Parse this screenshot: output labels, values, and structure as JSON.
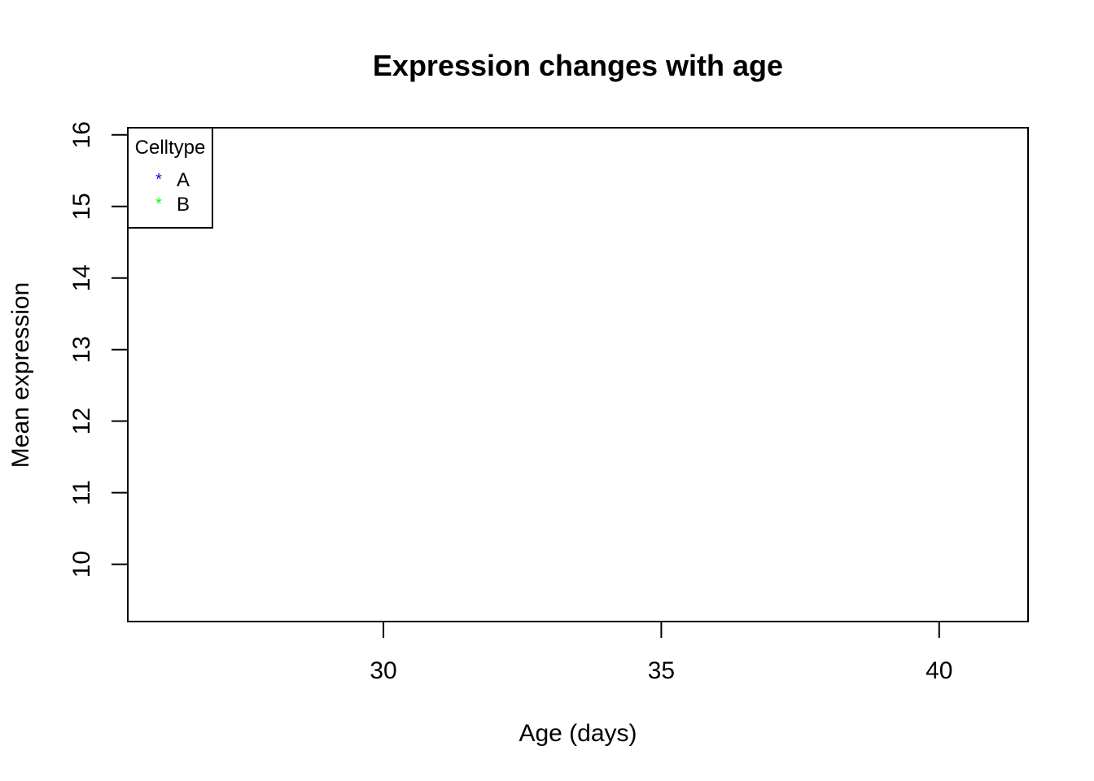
{
  "chart_data": {
    "type": "scatter",
    "title": "Expression changes with age",
    "xlabel": "Age (days)",
    "ylabel": "Mean expression",
    "xlim": [
      25.4,
      41.6
    ],
    "ylim": [
      9.2,
      16.1
    ],
    "x_ticks": [
      30,
      35,
      40
    ],
    "y_ticks": [
      10,
      11,
      12,
      13,
      14,
      15,
      16
    ],
    "grid": false,
    "legend": {
      "title": "Celltype",
      "position": "top-left",
      "entries": [
        {
          "label": "A",
          "symbol": "*",
          "color": "#0000ff"
        },
        {
          "label": "B",
          "symbol": "*",
          "color": "#00ff00"
        }
      ]
    },
    "series": [
      {
        "name": "A",
        "color": "#0000ff",
        "points": []
      },
      {
        "name": "B",
        "color": "#00ff00",
        "points": []
      }
    ]
  }
}
